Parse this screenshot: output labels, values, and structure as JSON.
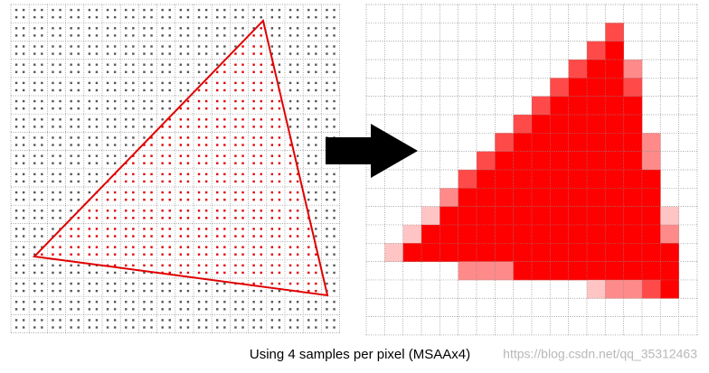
{
  "caption": "Using 4 samples per pixel (MSAAx4)",
  "watermark": "https://blog.csdn.net/qq_35312463"
}
